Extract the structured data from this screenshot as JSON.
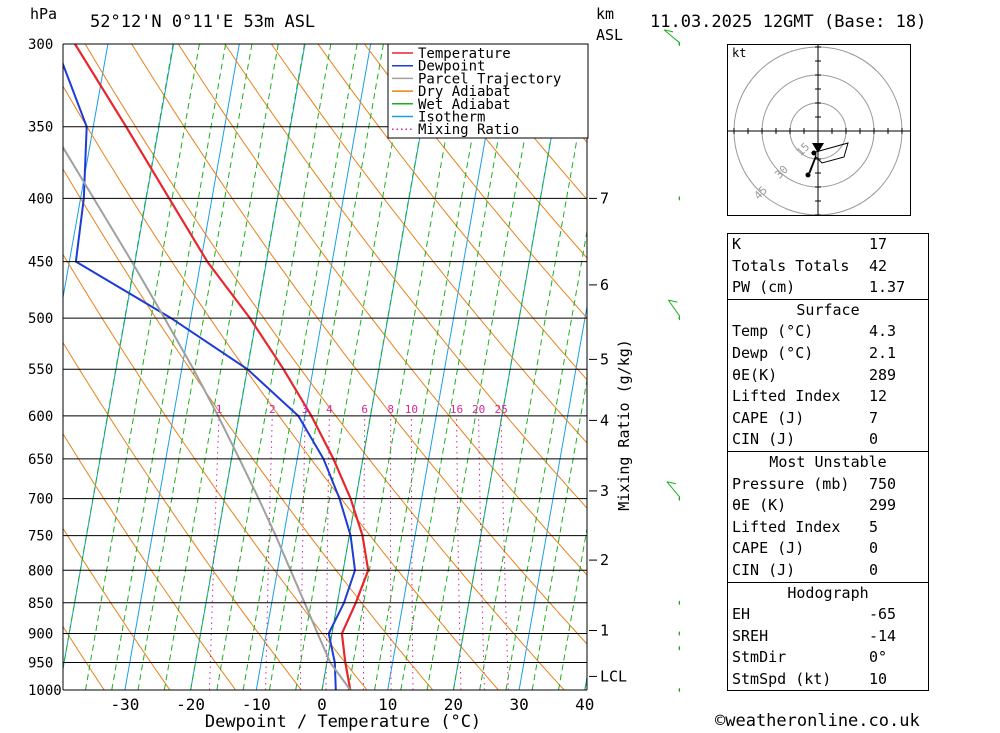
{
  "header": {
    "left_unit": "hPa",
    "location": "52°12'N  0°11'E  53m  ASL",
    "km_label": "km",
    "asl_label": "ASL",
    "datetime": "11.03.2025  12GMT  (Base: 18)"
  },
  "footer": {
    "copyright": "©weatheronline.co.uk"
  },
  "hodograph": {
    "unit": "kt",
    "ring_labels": [
      "15",
      "30",
      "45"
    ]
  },
  "stats": {
    "general": [
      {
        "label": "K",
        "value": "17"
      },
      {
        "label": "Totals Totals",
        "value": "42"
      },
      {
        "label": "PW (cm)",
        "value": "1.37"
      }
    ],
    "surface_title": "Surface",
    "surface": [
      {
        "label": "Temp (°C)",
        "value": "4.3"
      },
      {
        "label": "Dewp (°C)",
        "value": "2.1"
      },
      {
        "label": "θE(K)",
        "value": "289"
      },
      {
        "label": "Lifted Index",
        "value": "12"
      },
      {
        "label": "CAPE (J)",
        "value": "7"
      },
      {
        "label": "CIN (J)",
        "value": "0"
      }
    ],
    "mu_title": "Most Unstable",
    "mu": [
      {
        "label": "Pressure (mb)",
        "value": "750"
      },
      {
        "label": "θE (K)",
        "value": "299"
      },
      {
        "label": "Lifted Index",
        "value": "5"
      },
      {
        "label": "CAPE (J)",
        "value": "0"
      },
      {
        "label": "CIN (J)",
        "value": "0"
      }
    ],
    "hodo_title": "Hodograph",
    "hodo": [
      {
        "label": "EH",
        "value": "-65"
      },
      {
        "label": "SREH",
        "value": "-14"
      },
      {
        "label": "StmDir",
        "value": "0°"
      },
      {
        "label": "StmSpd (kt)",
        "value": "10"
      }
    ]
  },
  "chart_data": {
    "type": "line",
    "xlabel": "Dewpoint / Temperature (°C)",
    "ylabel_right": "Mixing Ratio (g/kg)",
    "x_ticks": [
      -30,
      -20,
      -10,
      0,
      10,
      20,
      30,
      40
    ],
    "pressure_levels": [
      300,
      350,
      400,
      450,
      500,
      550,
      600,
      650,
      700,
      750,
      800,
      850,
      900,
      950,
      1000
    ],
    "km_ticks": [
      {
        "label": "7",
        "p": 400
      },
      {
        "label": "6",
        "p": 470
      },
      {
        "label": "5",
        "p": 540
      },
      {
        "label": "4",
        "p": 605
      },
      {
        "label": "3",
        "p": 690
      },
      {
        "label": "2",
        "p": 785
      },
      {
        "label": "1",
        "p": 895
      },
      {
        "label": "LCL",
        "p": 975
      }
    ],
    "mixing_ratio_labels": [
      "1",
      "2",
      "3",
      "4",
      "6",
      "8",
      "10",
      "16",
      "20",
      "25"
    ],
    "legend": [
      {
        "name": "Temperature",
        "color": "#e8262d",
        "style": "solid"
      },
      {
        "name": "Dewpoint",
        "color": "#1d3bd6",
        "style": "solid"
      },
      {
        "name": "Parcel Trajectory",
        "color": "#a0a0a0",
        "style": "solid"
      },
      {
        "name": "Dry Adiabat",
        "color": "#e8821c",
        "style": "solid"
      },
      {
        "name": "Wet Adiabat",
        "color": "#1bb01b",
        "style": "solid"
      },
      {
        "name": "Isotherm",
        "color": "#1a9ee8",
        "style": "solid"
      },
      {
        "name": "Mixing Ratio",
        "color": "#d8259e",
        "style": "dotted"
      }
    ],
    "series": [
      {
        "name": "Temperature",
        "points": [
          [
            1000,
            4.3
          ],
          [
            950,
            2.8
          ],
          [
            900,
            1.5
          ],
          [
            850,
            2.8
          ],
          [
            800,
            3.8
          ],
          [
            750,
            2.0
          ],
          [
            700,
            -0.8
          ],
          [
            650,
            -4.5
          ],
          [
            600,
            -9.0
          ],
          [
            550,
            -14.5
          ],
          [
            500,
            -21.0
          ],
          [
            450,
            -29.0
          ],
          [
            400,
            -36.5
          ],
          [
            350,
            -45.0
          ],
          [
            300,
            -55.0
          ]
        ]
      },
      {
        "name": "Dewpoint",
        "points": [
          [
            1000,
            2.1
          ],
          [
            950,
            1.2
          ],
          [
            900,
            -0.5
          ],
          [
            850,
            1.0
          ],
          [
            800,
            1.8
          ],
          [
            750,
            0.2
          ],
          [
            700,
            -2.5
          ],
          [
            650,
            -6.0
          ],
          [
            600,
            -11.0
          ],
          [
            550,
            -20.0
          ],
          [
            500,
            -33.0
          ],
          [
            450,
            -49.0
          ],
          [
            400,
            -49.5
          ],
          [
            350,
            -51.0
          ],
          [
            300,
            -58.0
          ]
        ]
      },
      {
        "name": "Parcel Trajectory",
        "points": [
          [
            1000,
            4.3
          ],
          [
            950,
            0.5
          ],
          [
            900,
            -2.2
          ],
          [
            850,
            -5.0
          ],
          [
            800,
            -8.0
          ],
          [
            750,
            -11.2
          ],
          [
            700,
            -14.8
          ],
          [
            650,
            -18.8
          ],
          [
            600,
            -23.2
          ],
          [
            550,
            -28.2
          ],
          [
            500,
            -34.0
          ],
          [
            450,
            -40.5
          ],
          [
            400,
            -48.0
          ],
          [
            350,
            -56.5
          ],
          [
            300,
            -66.0
          ]
        ]
      }
    ]
  }
}
